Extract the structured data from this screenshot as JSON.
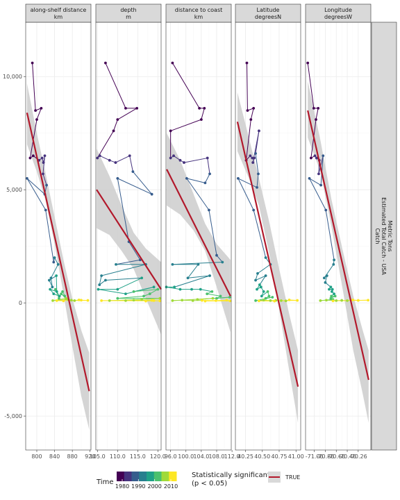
{
  "chart_data": {
    "type": "scatter",
    "facet_layout": "one row of 5 panels with free x scales and a shared y axis",
    "y_strip": [
      "Catch",
      "Estimated Total Catch - USA",
      "Metric Tons"
    ],
    "ylim": [
      -6500,
      12400
    ],
    "y_ticks": [
      {
        "value": 10000,
        "label": "10,000"
      },
      {
        "value": 5000,
        "label": "5,000"
      },
      {
        "value": 0,
        "label": "0"
      },
      {
        "value": -5000,
        "label": "-5,000"
      }
    ],
    "grid": true,
    "time_colors": [
      "#440154",
      "#46337e",
      "#365c8d",
      "#277f8e",
      "#1fa187",
      "#4ac16d",
      "#a0da39",
      "#fde725"
    ],
    "trend_color": "#b2182b",
    "ribbon_color": "#cccccc",
    "panels": [
      {
        "label": [
          "along-shelf distance",
          "km"
        ],
        "xlim": [
          775,
          922
        ],
        "x_ticks": [
          {
            "value": 800,
            "label": "800"
          },
          {
            "value": 840,
            "label": "840"
          },
          {
            "value": 880,
            "label": "880"
          },
          {
            "value": 920,
            "label": "920"
          }
        ],
        "trend": {
          "x": [
            778,
            918
          ],
          "y": [
            8400,
            -3900
          ]
        },
        "ribbon": [
          [
            778,
            9700,
            7000
          ],
          [
            800,
            7500,
            5800
          ],
          [
            820,
            5700,
            4500
          ],
          [
            840,
            3800,
            2600
          ],
          [
            860,
            1900,
            400
          ],
          [
            880,
            200,
            -1900
          ],
          [
            900,
            -1200,
            -4100
          ],
          [
            918,
            -2200,
            -5600
          ]
        ],
        "points": [
          [
            790,
            10600
          ],
          [
            797,
            8500
          ],
          [
            810,
            8600
          ],
          [
            800,
            8100
          ],
          [
            785,
            6400
          ],
          [
            792,
            6500
          ],
          [
            805,
            6300
          ],
          [
            812,
            6400
          ],
          [
            815,
            6200
          ],
          [
            818,
            6500
          ],
          [
            814,
            5700
          ],
          [
            822,
            5200
          ],
          [
            818,
            4800
          ],
          [
            778,
            5500
          ],
          [
            820,
            4100
          ],
          [
            838,
            1800
          ],
          [
            840,
            2000
          ],
          [
            848,
            1700
          ],
          [
            832,
            1100
          ],
          [
            835,
            700
          ],
          [
            828,
            1000
          ],
          [
            844,
            1200
          ],
          [
            845,
            500
          ],
          [
            830,
            600
          ],
          [
            838,
            400
          ],
          [
            851,
            300
          ],
          [
            842,
            600
          ],
          [
            850,
            200
          ],
          [
            858,
            500
          ],
          [
            863,
            300
          ],
          [
            855,
            400
          ],
          [
            866,
            200
          ],
          [
            836,
            100
          ],
          [
            870,
            150
          ],
          [
            878,
            120
          ],
          [
            885,
            100
          ],
          [
            895,
            130
          ],
          [
            900,
            120
          ],
          [
            915,
            110
          ],
          [
            845,
            100
          ],
          [
            860,
            90
          ]
        ]
      },
      {
        "label": [
          "depth",
          "m"
        ],
        "xlim": [
          104.6,
          120.8
        ],
        "x_ticks": [
          {
            "value": 105,
            "label": "105.0"
          },
          {
            "value": 110,
            "label": "110.0"
          },
          {
            "value": 115,
            "label": "115.0"
          },
          {
            "value": 120,
            "label": "120.0"
          }
        ],
        "trend": {
          "x": [
            104.8,
            120.8
          ],
          "y": [
            5000,
            600
          ]
        },
        "ribbon": [
          [
            104.8,
            6800,
            3300
          ],
          [
            108,
            5600,
            3000
          ],
          [
            111,
            4300,
            2300
          ],
          [
            114,
            3100,
            1500
          ],
          [
            117,
            2400,
            200
          ],
          [
            120.8,
            1800,
            -1400
          ]
        ],
        "points": [
          [
            107.0,
            10600
          ],
          [
            112.0,
            8600
          ],
          [
            114.8,
            8600
          ],
          [
            110.0,
            8100
          ],
          [
            109.0,
            7600
          ],
          [
            105.0,
            6400
          ],
          [
            105.6,
            6500
          ],
          [
            108.0,
            6300
          ],
          [
            109.5,
            6200
          ],
          [
            113.0,
            6500
          ],
          [
            113.8,
            5800
          ],
          [
            118.5,
            4800
          ],
          [
            110.0,
            5500
          ],
          [
            112.8,
            2700
          ],
          [
            115.6,
            1900
          ],
          [
            109.6,
            1700
          ],
          [
            117.0,
            1700
          ],
          [
            106.0,
            1200
          ],
          [
            105.5,
            800
          ],
          [
            107.0,
            1000
          ],
          [
            116.0,
            1100
          ],
          [
            110.0,
            600
          ],
          [
            105.2,
            600
          ],
          [
            112.0,
            400
          ],
          [
            119.0,
            700
          ],
          [
            114.0,
            500
          ],
          [
            120.0,
            600
          ],
          [
            118.0,
            400
          ],
          [
            116.5,
            300
          ],
          [
            110.0,
            200
          ],
          [
            120.5,
            200
          ],
          [
            116.0,
            150
          ],
          [
            108.0,
            100
          ],
          [
            112.0,
            100
          ],
          [
            114.0,
            120
          ],
          [
            118.5,
            110
          ],
          [
            120.5,
            90
          ],
          [
            106.0,
            100
          ],
          [
            119.0,
            100
          ],
          [
            117.0,
            80
          ]
        ]
      },
      {
        "label": [
          "distance to coast",
          "km"
        ],
        "xlim": [
          94.8,
          111.8
        ],
        "x_ticks": [
          {
            "value": 96,
            "label": "96.0"
          },
          {
            "value": 100,
            "label": "100.0"
          },
          {
            "value": 104,
            "label": "104.0"
          },
          {
            "value": 108,
            "label": "108.0"
          },
          {
            "value": 112,
            "label": "112.0"
          }
        ],
        "trend": {
          "x": [
            95.0,
            111.6
          ],
          "y": [
            5900,
            300
          ]
        },
        "ribbon": [
          [
            95.0,
            7500,
            4300
          ],
          [
            98.5,
            6300,
            3900
          ],
          [
            102.0,
            4800,
            3200
          ],
          [
            105.0,
            3500,
            2300
          ],
          [
            108.0,
            2600,
            700
          ],
          [
            111.6,
            1900,
            -1300
          ]
        ],
        "points": [
          [
            96.5,
            10600
          ],
          [
            103.5,
            8600
          ],
          [
            104.8,
            8600
          ],
          [
            104.0,
            8100
          ],
          [
            96.0,
            7600
          ],
          [
            96.0,
            6400
          ],
          [
            96.8,
            6500
          ],
          [
            98.5,
            6300
          ],
          [
            99.5,
            6200
          ],
          [
            105.6,
            6400
          ],
          [
            106.2,
            5700
          ],
          [
            105.0,
            5300
          ],
          [
            100.2,
            5500
          ],
          [
            106.0,
            4100
          ],
          [
            108.0,
            2100
          ],
          [
            109.5,
            1800
          ],
          [
            96.5,
            1700
          ],
          [
            103.2,
            1700
          ],
          [
            100.5,
            1100
          ],
          [
            106.2,
            1200
          ],
          [
            97.0,
            700
          ],
          [
            94.9,
            700
          ],
          [
            98.5,
            600
          ],
          [
            101.5,
            600
          ],
          [
            103.8,
            600
          ],
          [
            106.8,
            500
          ],
          [
            105.5,
            400
          ],
          [
            109.0,
            300
          ],
          [
            108.0,
            200
          ],
          [
            111.4,
            250
          ],
          [
            103.0,
            150
          ],
          [
            107.0,
            200
          ],
          [
            96.5,
            100
          ],
          [
            99.0,
            120
          ],
          [
            101.8,
            100
          ],
          [
            104.2,
            110
          ],
          [
            107.8,
            100
          ],
          [
            110.6,
            120
          ],
          [
            111.5,
            90
          ],
          [
            105.0,
            80
          ]
        ]
      },
      {
        "label": [
          "Latitude",
          "degreesN"
        ],
        "xlim": [
          40.1,
          41.07
        ],
        "x_ticks": [
          {
            "value": 40.25,
            "label": "40.25"
          },
          {
            "value": 40.5,
            "label": "40.50"
          },
          {
            "value": 40.75,
            "label": "40.75"
          },
          {
            "value": 41.0,
            "label": "41.00"
          }
        ],
        "trend": {
          "x": [
            40.13,
            41.03
          ],
          "y": [
            8000,
            -3700
          ]
        },
        "ribbon": [
          [
            40.13,
            9300,
            6700
          ],
          [
            40.3,
            7300,
            5500
          ],
          [
            40.45,
            5500,
            4300
          ],
          [
            40.6,
            3600,
            2200
          ],
          [
            40.75,
            1500,
            -300
          ],
          [
            40.9,
            -500,
            -3000
          ],
          [
            41.03,
            -2100,
            -5300
          ]
        ],
        "points": [
          [
            40.27,
            10600
          ],
          [
            40.28,
            8500
          ],
          [
            40.37,
            8600
          ],
          [
            40.33,
            8100
          ],
          [
            40.26,
            6300
          ],
          [
            40.32,
            6500
          ],
          [
            40.35,
            6400
          ],
          [
            40.38,
            6400
          ],
          [
            40.36,
            6200
          ],
          [
            40.45,
            7600
          ],
          [
            40.4,
            6600
          ],
          [
            40.44,
            5700
          ],
          [
            40.42,
            5100
          ],
          [
            40.14,
            5500
          ],
          [
            40.37,
            4100
          ],
          [
            40.55,
            2000
          ],
          [
            40.62,
            1700
          ],
          [
            40.43,
            1300
          ],
          [
            40.4,
            1000
          ],
          [
            40.55,
            1200
          ],
          [
            40.46,
            800
          ],
          [
            40.42,
            600
          ],
          [
            40.48,
            700
          ],
          [
            40.52,
            500
          ],
          [
            40.49,
            300
          ],
          [
            40.58,
            500
          ],
          [
            40.6,
            300
          ],
          [
            40.55,
            200
          ],
          [
            40.65,
            250
          ],
          [
            40.4,
            100
          ],
          [
            40.52,
            120
          ],
          [
            40.62,
            100
          ],
          [
            40.7,
            110
          ],
          [
            40.78,
            100
          ],
          [
            40.85,
            90
          ],
          [
            40.9,
            130
          ],
          [
            41.02,
            110
          ],
          [
            40.45,
            90
          ],
          [
            40.68,
            80
          ]
        ]
      },
      {
        "label": [
          "Longitude",
          "degreesW"
        ],
        "xlim": [
          -71.22,
          -70.03
        ],
        "x_ticks": [
          {
            "value": -71.06,
            "label": "-71.06"
          },
          {
            "value": -70.86,
            "label": "-70.86"
          },
          {
            "value": -70.66,
            "label": "-70.66"
          },
          {
            "value": -70.46,
            "label": "-70.46"
          },
          {
            "value": -70.26,
            "label": "-70.26"
          }
        ],
        "trend": {
          "x": [
            -71.18,
            -70.07
          ],
          "y": [
            8500,
            -3400
          ]
        },
        "ribbon": [
          [
            -71.18,
            9800,
            7300
          ],
          [
            -70.95,
            7200,
            5800
          ],
          [
            -70.75,
            4600,
            3400
          ],
          [
            -70.55,
            2400,
            700
          ],
          [
            -70.35,
            300,
            -2100
          ],
          [
            -70.18,
            -1200,
            -4000
          ],
          [
            -70.07,
            -2100,
            -5300
          ]
        ],
        "points": [
          [
            -71.18,
            10600
          ],
          [
            -71.07,
            8600
          ],
          [
            -70.99,
            8600
          ],
          [
            -71.03,
            8100
          ],
          [
            -71.12,
            6400
          ],
          [
            -71.05,
            6500
          ],
          [
            -71.02,
            6400
          ],
          [
            -71.0,
            6400
          ],
          [
            -70.97,
            6300
          ],
          [
            -70.98,
            5700
          ],
          [
            -70.9,
            6500
          ],
          [
            -70.94,
            5200
          ],
          [
            -71.15,
            5500
          ],
          [
            -70.85,
            4100
          ],
          [
            -70.7,
            1900
          ],
          [
            -70.71,
            1700
          ],
          [
            -70.88,
            1100
          ],
          [
            -70.83,
            1200
          ],
          [
            -70.86,
            900
          ],
          [
            -70.76,
            700
          ],
          [
            -70.79,
            600
          ],
          [
            -70.73,
            600
          ],
          [
            -70.74,
            500
          ],
          [
            -70.7,
            400
          ],
          [
            -70.75,
            300
          ],
          [
            -70.68,
            300
          ],
          [
            -70.76,
            200
          ],
          [
            -70.72,
            150
          ],
          [
            -70.95,
            100
          ],
          [
            -70.84,
            120
          ],
          [
            -70.66,
            100
          ],
          [
            -70.56,
            110
          ],
          [
            -70.46,
            100
          ],
          [
            -70.36,
            130
          ],
          [
            -70.26,
            110
          ],
          [
            -70.08,
            120
          ],
          [
            -70.72,
            90
          ]
        ]
      }
    ],
    "legend": {
      "placement": "bottom",
      "time": {
        "title": "Time",
        "ticks": [
          "1980",
          "1990",
          "2000",
          "2010"
        ]
      },
      "significance": {
        "title_lines": [
          "Statistically significant",
          "(p < 0.05)"
        ],
        "entries": [
          "TRUE"
        ]
      }
    }
  }
}
